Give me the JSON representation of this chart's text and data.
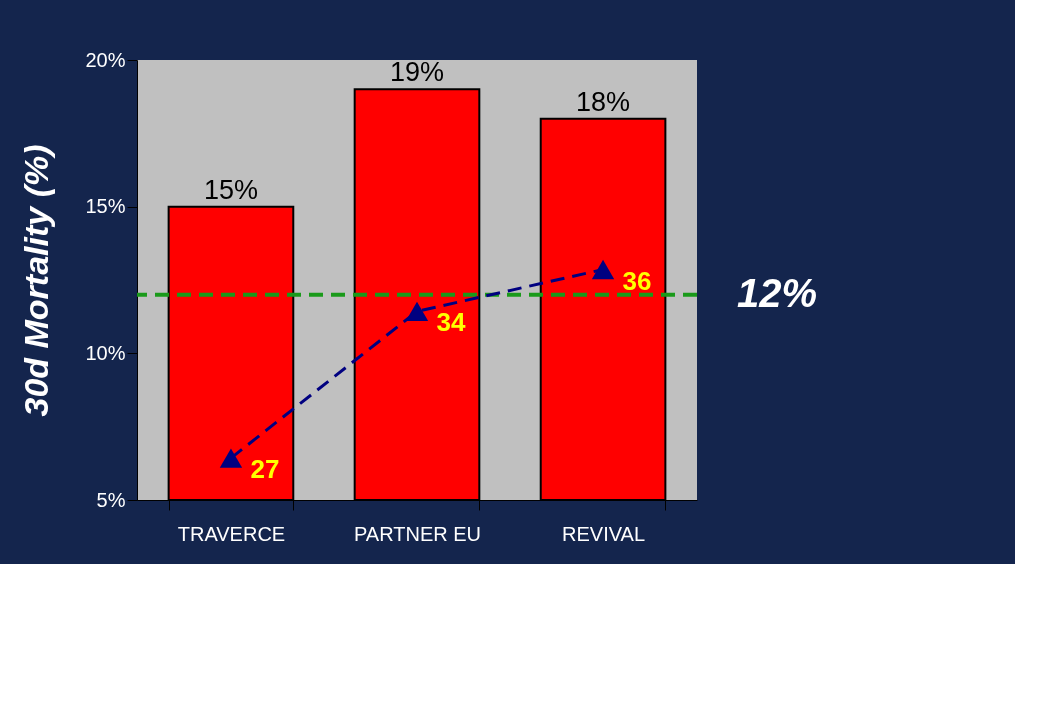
{
  "chart_data": {
    "type": "bar",
    "ylabel": "30d Mortality (%)",
    "categories": [
      "TRAVERCE",
      "PARTNER EU",
      "REVIVAL"
    ],
    "ylim": [
      5,
      20
    ],
    "yticks": [
      {
        "value": 5,
        "label": "5%"
      },
      {
        "value": 10,
        "label": "10%"
      },
      {
        "value": 15,
        "label": "15%"
      },
      {
        "value": 20,
        "label": "20%"
      }
    ],
    "y2lim": [
      25,
      46
    ],
    "grid": false,
    "legend": false,
    "series": [
      {
        "type": "bar",
        "color": "#ff0000",
        "values": [
          15,
          19,
          18
        ],
        "value_labels": [
          "15%",
          "19%",
          "18%"
        ]
      },
      {
        "type": "line",
        "axis": "y2",
        "color": "#000080",
        "marker": "triangle",
        "line_style": "dashed",
        "values": [
          27,
          34,
          36
        ],
        "value_labels": [
          "27",
          "34",
          "36"
        ]
      }
    ],
    "ref_lines": [
      {
        "axis": "y",
        "value": 12,
        "label": "12%",
        "color": "#1a9a1a",
        "line_style": "dashed"
      }
    ]
  }
}
